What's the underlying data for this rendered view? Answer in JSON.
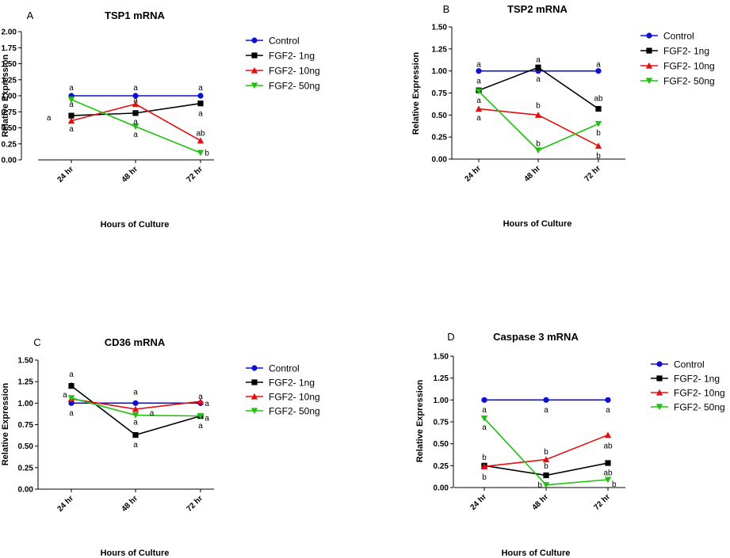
{
  "chart_data": [
    {
      "type": "line",
      "panel": "A",
      "title": "TSP1 mRNA",
      "xlabel": "Hours of Culture",
      "ylabel": "Relative Expression",
      "categories": [
        "24 hr",
        "48 hr",
        "72 hr"
      ],
      "ylim": [
        0,
        2.0
      ],
      "yticks": [
        "0.00",
        "0.25",
        "0.50",
        "0.75",
        "1.00",
        "1.25",
        "1.50",
        "1.75",
        "2.00"
      ],
      "series": [
        {
          "name": "Control",
          "values": [
            1.0,
            1.0,
            1.0
          ]
        },
        {
          "name": "FGF2- 1ng",
          "values": [
            0.69,
            0.73,
            0.88
          ]
        },
        {
          "name": "FGF2- 10ng",
          "values": [
            0.61,
            0.87,
            0.3
          ]
        },
        {
          "name": "FGF2- 50ng",
          "values": [
            0.94,
            0.52,
            0.11
          ]
        }
      ],
      "annotations": [
        {
          "text": "a",
          "x": 0,
          "y": 1.13
        },
        {
          "text": "a",
          "x": 0,
          "y": 0.87
        },
        {
          "text": "a",
          "x": -0.35,
          "y": 0.66
        },
        {
          "text": "a",
          "x": 0,
          "y": 0.49
        },
        {
          "text": "a",
          "x": 1,
          "y": 1.13
        },
        {
          "text": "a",
          "x": 1,
          "y": 0.94
        },
        {
          "text": "a",
          "x": 1,
          "y": 0.6
        },
        {
          "text": "a",
          "x": 1,
          "y": 0.4
        },
        {
          "text": "a",
          "x": 2,
          "y": 1.13
        },
        {
          "text": "a",
          "x": 2,
          "y": 0.73
        },
        {
          "text": "ab",
          "x": 2,
          "y": 0.42
        },
        {
          "text": "b",
          "x": 2.1,
          "y": 0.11
        }
      ]
    },
    {
      "type": "line",
      "panel": "B",
      "title": "TSP2 mRNA",
      "xlabel": "Hours of Culture",
      "ylabel": "Relative Expression",
      "categories": [
        "24 hr",
        "48 hr",
        "72 hr"
      ],
      "ylim": [
        0,
        1.5
      ],
      "yticks": [
        "0.00",
        "0.25",
        "0.50",
        "0.75",
        "1.00",
        "1.25",
        "1.50"
      ],
      "series": [
        {
          "name": "Control",
          "values": [
            1.0,
            1.0,
            1.0
          ]
        },
        {
          "name": "FGF2- 1ng",
          "values": [
            0.78,
            1.04,
            0.57
          ]
        },
        {
          "name": "FGF2- 10ng",
          "values": [
            0.57,
            0.5,
            0.15
          ]
        },
        {
          "name": "FGF2- 50ng",
          "values": [
            0.77,
            0.1,
            0.4
          ]
        }
      ],
      "annotations": [
        {
          "text": "a",
          "x": 0,
          "y": 1.08
        },
        {
          "text": "a",
          "x": 0,
          "y": 0.89
        },
        {
          "text": "a",
          "x": 0,
          "y": 0.67
        },
        {
          "text": "a",
          "x": 0,
          "y": 0.47
        },
        {
          "text": "a",
          "x": 1,
          "y": 1.13
        },
        {
          "text": "a",
          "x": 1,
          "y": 0.91
        },
        {
          "text": "b",
          "x": 1,
          "y": 0.61
        },
        {
          "text": "b",
          "x": 1,
          "y": 0.18
        },
        {
          "text": "a",
          "x": 2,
          "y": 1.08
        },
        {
          "text": "ab",
          "x": 2,
          "y": 0.69
        },
        {
          "text": "b",
          "x": 2,
          "y": 0.3
        },
        {
          "text": "b",
          "x": 2,
          "y": 0.04
        }
      ]
    },
    {
      "type": "line",
      "panel": "C",
      "title": "CD36 mRNA",
      "xlabel": "Hours of Culture",
      "ylabel": "Relative Expression",
      "categories": [
        "24 hr",
        "48 hr",
        "72 hr"
      ],
      "ylim": [
        0,
        1.5
      ],
      "yticks": [
        "0.00",
        "0.25",
        "0.50",
        "0.75",
        "1.00",
        "1.25",
        "1.50"
      ],
      "series": [
        {
          "name": "Control",
          "values": [
            1.0,
            1.0,
            1.0
          ]
        },
        {
          "name": "FGF2- 1ng",
          "values": [
            1.2,
            0.63,
            0.85
          ]
        },
        {
          "name": "FGF2- 10ng",
          "values": [
            1.05,
            0.93,
            1.02
          ]
        },
        {
          "name": "FGF2- 50ng",
          "values": [
            1.06,
            0.86,
            0.85
          ]
        }
      ],
      "annotations": [
        {
          "text": "a",
          "x": 0,
          "y": 1.34
        },
        {
          "text": "a",
          "x": 0,
          "y": 1.22
        },
        {
          "text": "a",
          "x": -0.1,
          "y": 1.1
        },
        {
          "text": "a",
          "x": 0,
          "y": 0.89
        },
        {
          "text": "a",
          "x": 1,
          "y": 1.13
        },
        {
          "text": "a",
          "x": 1.25,
          "y": 0.89
        },
        {
          "text": "a",
          "x": 1,
          "y": 0.78
        },
        {
          "text": "a",
          "x": 1,
          "y": 0.52
        },
        {
          "text": "a",
          "x": 2,
          "y": 1.08
        },
        {
          "text": "a",
          "x": 2.1,
          "y": 1.0
        },
        {
          "text": "a",
          "x": 2.1,
          "y": 0.83
        },
        {
          "text": "a",
          "x": 2,
          "y": 0.74
        }
      ]
    },
    {
      "type": "line",
      "panel": "D",
      "title": "Caspase 3 mRNA",
      "xlabel": "Hours of Culture",
      "ylabel": "Relative Expression",
      "categories": [
        "24 hr",
        "48 hr",
        "72 hr"
      ],
      "ylim": [
        0,
        1.5
      ],
      "yticks": [
        "0.00",
        "0.25",
        "0.50",
        "0.75",
        "1.00",
        "1.25",
        "1.50"
      ],
      "series": [
        {
          "name": "Control",
          "values": [
            1.0,
            1.0,
            1.0
          ]
        },
        {
          "name": "FGF2- 1ng",
          "values": [
            0.25,
            0.14,
            0.28
          ]
        },
        {
          "name": "FGF2- 10ng",
          "values": [
            0.24,
            0.32,
            0.6
          ]
        },
        {
          "name": "FGF2- 50ng",
          "values": [
            0.79,
            0.03,
            0.09
          ]
        }
      ],
      "annotations": [
        {
          "text": "a",
          "x": 0,
          "y": 0.89
        },
        {
          "text": "a",
          "x": 0,
          "y": 0.69
        },
        {
          "text": "b",
          "x": 0,
          "y": 0.35
        },
        {
          "text": "b",
          "x": 0,
          "y": 0.12
        },
        {
          "text": "a",
          "x": 1,
          "y": 0.89
        },
        {
          "text": "b",
          "x": 1,
          "y": 0.41
        },
        {
          "text": "b",
          "x": 1,
          "y": 0.25
        },
        {
          "text": "b",
          "x": 0.9,
          "y": 0.03
        },
        {
          "text": "a",
          "x": 2,
          "y": 0.89
        },
        {
          "text": "ab",
          "x": 2,
          "y": 0.48
        },
        {
          "text": "ab",
          "x": 2,
          "y": 0.17
        },
        {
          "text": "b",
          "x": 2.1,
          "y": 0.04
        }
      ]
    }
  ],
  "series_colors": [
    "#1010d0",
    "#000000",
    "#e01010",
    "#20c010"
  ],
  "series_markers": [
    "circle",
    "square",
    "triangle-up",
    "triangle-down"
  ],
  "legend_placement": "right"
}
